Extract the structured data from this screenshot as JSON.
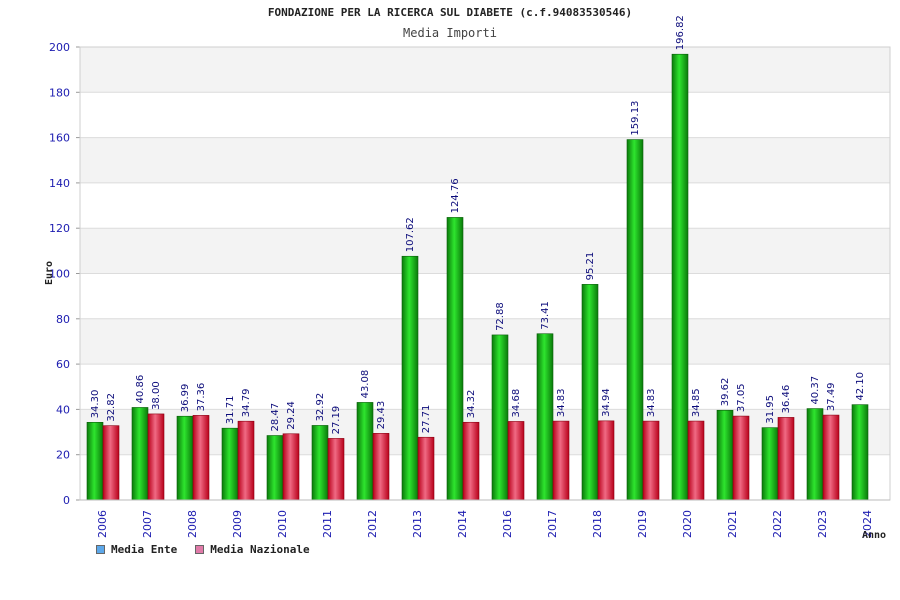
{
  "chart_data": {
    "type": "bar",
    "title": "FONDAZIONE PER LA RICERCA SUL DIABETE (c.f.94083530546)",
    "subtitle": "Media Importi",
    "xlabel": "Anno",
    "ylabel": "Euro",
    "ylim": [
      0,
      200
    ],
    "yticks": [
      0,
      20,
      40,
      60,
      80,
      100,
      120,
      140,
      160,
      180,
      200
    ],
    "categories": [
      "2006",
      "2007",
      "2008",
      "2009",
      "2010",
      "2011",
      "2012",
      "2013",
      "2014",
      "2016",
      "2017",
      "2018",
      "2019",
      "2020",
      "2021",
      "2022",
      "2023",
      "2024"
    ],
    "series": [
      {
        "name": "Media Ente",
        "color": "#1fb51f",
        "values": [
          34.3,
          40.86,
          36.99,
          31.71,
          28.47,
          32.92,
          43.08,
          107.62,
          124.76,
          72.88,
          73.41,
          95.21,
          159.13,
          196.82,
          39.62,
          31.95,
          40.37,
          42.1
        ],
        "labels": [
          "34.30",
          "40.86",
          "36.99",
          "31.71",
          "28.47",
          "32.92",
          "43.08",
          "107.62",
          "124.76",
          "72.88",
          "73.41",
          "95.21",
          "159.13",
          "196.82",
          "39.62",
          "31.95",
          "40.37",
          "42.10"
        ]
      },
      {
        "name": "Media Nazionale",
        "color": "#e0182c",
        "values": [
          32.82,
          38.0,
          37.36,
          34.79,
          29.24,
          27.19,
          29.43,
          27.71,
          34.32,
          34.68,
          34.83,
          34.94,
          34.83,
          34.85,
          37.05,
          36.46,
          37.49,
          null
        ],
        "labels": [
          "32.82",
          "38.00",
          "37.36",
          "34.79",
          "29.24",
          "27.19",
          "29.43",
          "27.71",
          "34.32",
          "34.68",
          "34.83",
          "34.94",
          "34.83",
          "34.85",
          "37.05",
          "36.46",
          "37.49",
          ""
        ]
      }
    ],
    "legend": {
      "position": "bottom-left"
    },
    "grid": true,
    "band_colors": [
      "#f3f3f3",
      "#ffffff"
    ]
  }
}
